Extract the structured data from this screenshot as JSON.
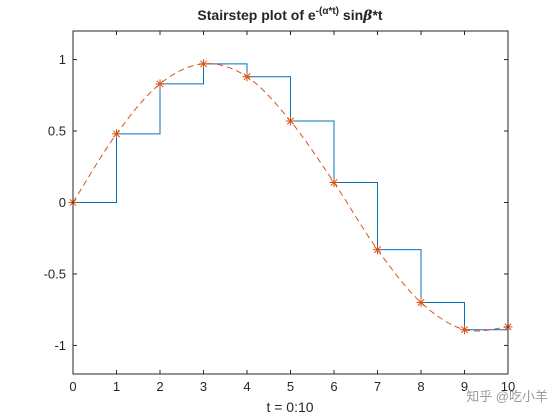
{
  "chart_data": {
    "type": "line",
    "title": {
      "prefix": "Stairstep plot of e",
      "superscript": "-(α*t)",
      "middle": " sin",
      "beta": "β",
      "suffix": "*t"
    },
    "xlabel": "t = 0:10",
    "ylabel": "",
    "xlim": [
      0,
      10
    ],
    "ylim": [
      -1.2,
      1.2
    ],
    "xticks": [
      0,
      1,
      2,
      3,
      4,
      5,
      6,
      7,
      8,
      9,
      10
    ],
    "xtick_labels": [
      "0",
      "1",
      "2",
      "3",
      "4",
      "5",
      "6",
      "7",
      "8",
      "9",
      "10"
    ],
    "yticks": [
      1,
      0.5,
      0,
      -0.5,
      -1
    ],
    "ytick_labels": [
      "1",
      "0.5",
      "0",
      "-0.5",
      "-1"
    ],
    "grid": false,
    "box": true,
    "series": [
      {
        "style": "stairs",
        "color": "#0072BD",
        "x": [
          0,
          1,
          2,
          3,
          4,
          5,
          6,
          7,
          8,
          9,
          10
        ],
        "values": [
          0,
          0.48,
          0.83,
          0.97,
          0.88,
          0.57,
          0.14,
          -0.33,
          -0.7,
          -0.89,
          -0.87
        ]
      },
      {
        "style": "dashed-line-asterisk-markers",
        "color": "#D95319",
        "x": [
          0,
          1,
          2,
          3,
          4,
          5,
          6,
          7,
          8,
          9,
          10
        ],
        "values": [
          0,
          0.48,
          0.83,
          0.97,
          0.88,
          0.57,
          0.14,
          -0.33,
          -0.7,
          -0.89,
          -0.87
        ]
      }
    ]
  },
  "watermark": "知乎 @吃小羊"
}
